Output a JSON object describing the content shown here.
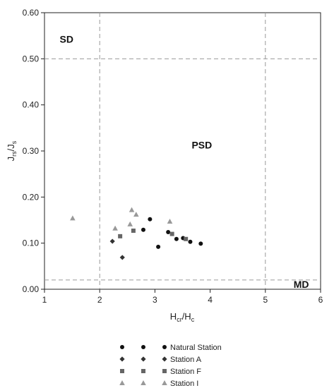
{
  "chart_data": {
    "type": "scatter",
    "xlabel": {
      "main": "H",
      "sub1": "cr",
      "mid": "/H",
      "sub2": "c"
    },
    "ylabel": {
      "main": "J",
      "sub1": "rs",
      "mid": "/J",
      "sub2": "s"
    },
    "xlim": [
      1,
      6
    ],
    "ylim": [
      0,
      0.6
    ],
    "x_ticks": [
      1,
      2,
      3,
      4,
      5,
      6
    ],
    "x_tick_labels": [
      "1",
      "2",
      "3",
      "4",
      "5",
      "6"
    ],
    "y_ticks": [
      0,
      0.1,
      0.2,
      0.3,
      0.4,
      0.5,
      0.6
    ],
    "y_tick_labels": [
      "0.00",
      "0.10",
      "0.20",
      "0.30",
      "0.40",
      "0.50",
      "0.60"
    ],
    "reference_lines": [
      {
        "axis": "x",
        "value": 2,
        "style": "dashed"
      },
      {
        "axis": "x",
        "value": 5,
        "style": "dashed"
      },
      {
        "axis": "y",
        "value": 0.5,
        "style": "dashed"
      },
      {
        "axis": "y",
        "value": 0.02,
        "style": "dashed"
      }
    ],
    "regions": [
      {
        "label": "SD",
        "x": 1.4,
        "y": 0.535
      },
      {
        "label": "PSD",
        "x": 3.85,
        "y": 0.305
      },
      {
        "label": "MD",
        "x": 5.65,
        "y": 0.003
      }
    ],
    "series": [
      {
        "name": "Natural Station",
        "marker": "circle",
        "color": "#111111",
        "x": [
          2.79,
          2.91,
          3.06,
          3.24,
          3.39,
          3.51,
          3.64,
          3.83
        ],
        "y": [
          0.129,
          0.152,
          0.092,
          0.124,
          0.109,
          0.111,
          0.103,
          0.099
        ]
      },
      {
        "name": "Station A",
        "marker": "diamond",
        "color": "#333333",
        "x": [
          2.23,
          2.41
        ],
        "y": [
          0.104,
          0.069
        ]
      },
      {
        "name": "Station F",
        "marker": "square",
        "color": "#666666",
        "x": [
          2.37,
          2.61,
          3.31,
          3.56
        ],
        "y": [
          0.115,
          0.127,
          0.12,
          0.109
        ]
      },
      {
        "name": "Station I",
        "marker": "triangle",
        "color": "#999999",
        "x": [
          1.51,
          2.28,
          2.55,
          2.58,
          2.66,
          3.27
        ],
        "y": [
          0.154,
          0.132,
          0.141,
          0.172,
          0.162,
          0.147
        ]
      }
    ],
    "legend": {
      "placement": "bottom-center",
      "markers_per_entry": 3
    },
    "grid": false
  }
}
